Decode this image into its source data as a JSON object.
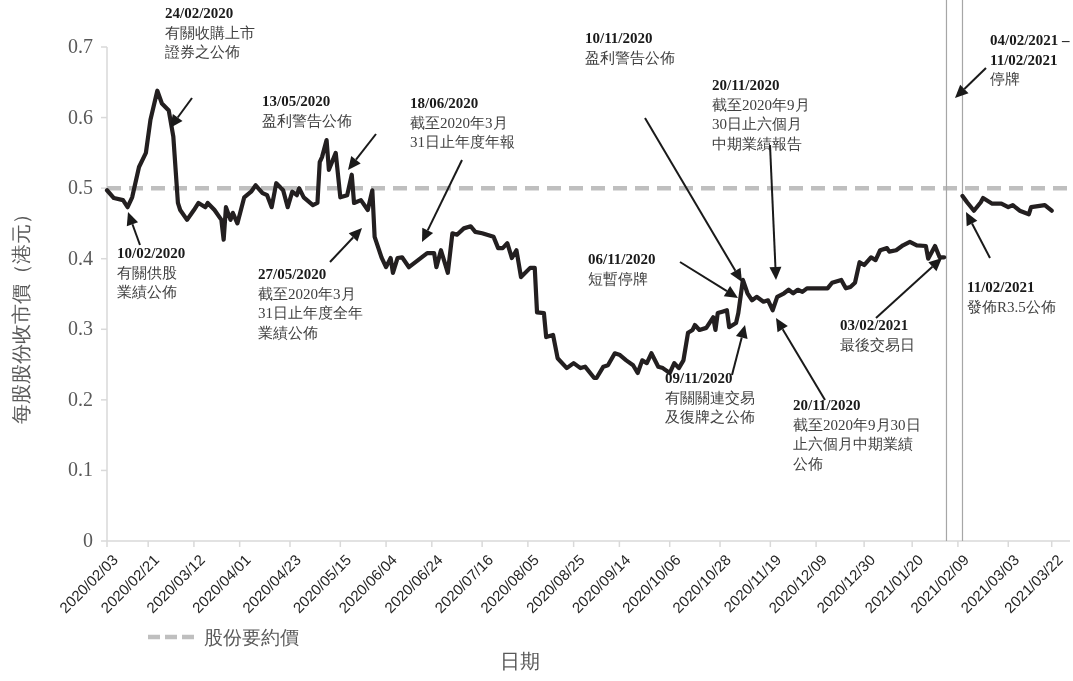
{
  "chart_data": {
    "type": "line",
    "xlabel": "日期",
    "ylabel": "每股股份收市價（港元）",
    "x": [
      "2020-02-03",
      "2020-02-06",
      "2020-02-10",
      "2020-02-12",
      "2020-02-14",
      "2020-02-17",
      "2020-02-20",
      "2020-02-22",
      "2020-02-25",
      "2020-02-27",
      "2020-03-01",
      "2020-03-03",
      "2020-03-05",
      "2020-03-06",
      "2020-03-09",
      "2020-03-12",
      "2020-03-14",
      "2020-03-17",
      "2020-03-18",
      "2020-03-21",
      "2020-03-24",
      "2020-03-25",
      "2020-03-26",
      "2020-03-28",
      "2020-03-29",
      "2020-03-31",
      "2020-04-03",
      "2020-04-06",
      "2020-04-08",
      "2020-04-11",
      "2020-04-13",
      "2020-04-15",
      "2020-04-17",
      "2020-04-20",
      "2020-04-22",
      "2020-04-24",
      "2020-04-26",
      "2020-04-27",
      "2020-04-29",
      "2020-05-03",
      "2020-05-05",
      "2020-05-06",
      "2020-05-07",
      "2020-05-09",
      "2020-05-10",
      "2020-05-13",
      "2020-05-15",
      "2020-05-18",
      "2020-05-20",
      "2020-05-21",
      "2020-05-24",
      "2020-05-27",
      "2020-05-29",
      "2020-05-30",
      "2020-06-02",
      "2020-06-04",
      "2020-06-06",
      "2020-06-07",
      "2020-06-09",
      "2020-06-11",
      "2020-06-14",
      "2020-06-18",
      "2020-06-22",
      "2020-06-25",
      "2020-06-26",
      "2020-06-28",
      "2020-07-01",
      "2020-07-03",
      "2020-07-05",
      "2020-07-08",
      "2020-07-11",
      "2020-07-13",
      "2020-07-16",
      "2020-07-21",
      "2020-07-23",
      "2020-07-25",
      "2020-07-27",
      "2020-07-29",
      "2020-07-31",
      "2020-08-02",
      "2020-08-06",
      "2020-08-08",
      "2020-08-09",
      "2020-08-12",
      "2020-08-13",
      "2020-08-16",
      "2020-08-18",
      "2020-08-22",
      "2020-08-25",
      "2020-08-28",
      "2020-08-30",
      "2020-09-03",
      "2020-09-04",
      "2020-09-07",
      "2020-09-09",
      "2020-09-12",
      "2020-09-14",
      "2020-09-17",
      "2020-09-20",
      "2020-09-22",
      "2020-09-24",
      "2020-09-26",
      "2020-09-28",
      "2020-10-01",
      "2020-10-03",
      "2020-10-06",
      "2020-10-08",
      "2020-10-10",
      "2020-10-12",
      "2020-10-14",
      "2020-10-16",
      "2020-10-17",
      "2020-10-19",
      "2020-10-22",
      "2020-10-25",
      "2020-10-26",
      "2020-10-27",
      "2020-10-29",
      "2020-10-31",
      "2020-11-01",
      "2020-11-04",
      "2020-11-05",
      "2020-11-07",
      "2020-11-09",
      "2020-11-11",
      "2020-11-13",
      "2020-11-16",
      "2020-11-18",
      "2020-11-20",
      "2020-11-22",
      "2020-11-25",
      "2020-11-27",
      "2020-11-29",
      "2020-12-01",
      "2020-12-03",
      "2020-12-05",
      "2020-12-14",
      "2020-12-16",
      "2020-12-20",
      "2020-12-22",
      "2020-12-24",
      "2020-12-26",
      "2020-12-28",
      "2020-12-30",
      "2021-01-02",
      "2021-01-04",
      "2021-01-06",
      "2021-01-09",
      "2021-01-10",
      "2021-01-13",
      "2021-01-16",
      "2021-01-19",
      "2021-01-22",
      "2021-01-26",
      "2021-01-27",
      "2021-01-30",
      "2021-02-01",
      "2021-02-03"
    ],
    "series": [
      {
        "color": "#231f20",
        "values": [
          0.497,
          0.486,
          0.483,
          0.473,
          0.487,
          0.53,
          0.55,
          0.597,
          0.638,
          0.62,
          0.61,
          0.573,
          0.479,
          0.469,
          0.455,
          0.469,
          0.479,
          0.473,
          0.479,
          0.469,
          0.455,
          0.427,
          0.473,
          0.455,
          0.465,
          0.45,
          0.487,
          0.495,
          0.504,
          0.493,
          0.49,
          0.473,
          0.507,
          0.497,
          0.473,
          0.495,
          0.49,
          0.5,
          0.487,
          0.476,
          0.479,
          0.537,
          0.544,
          0.568,
          0.526,
          0.55,
          0.487,
          0.49,
          0.519,
          0.479,
          0.483,
          0.469,
          0.497,
          0.431,
          0.402,
          0.388,
          0.401,
          0.38,
          0.401,
          0.402,
          0.388,
          0.398,
          0.408,
          0.408,
          0.388,
          0.412,
          0.38,
          0.436,
          0.434,
          0.443,
          0.446,
          0.438,
          0.436,
          0.431,
          0.415,
          0.415,
          0.422,
          0.401,
          0.412,
          0.374,
          0.387,
          0.387,
          0.324,
          0.323,
          0.289,
          0.292,
          0.259,
          0.245,
          0.252,
          0.245,
          0.247,
          0.231,
          0.231,
          0.247,
          0.249,
          0.266,
          0.264,
          0.256,
          0.249,
          0.238,
          0.256,
          0.252,
          0.266,
          0.247,
          0.245,
          0.238,
          0.252,
          0.245,
          0.256,
          0.295,
          0.299,
          0.306,
          0.299,
          0.302,
          0.317,
          0.299,
          0.323,
          0.325,
          0.327,
          0.303,
          0.309,
          0.323,
          0.37,
          0.351,
          0.341,
          0.346,
          0.339,
          0.341,
          0.327,
          0.346,
          0.351,
          0.356,
          0.351,
          0.356,
          0.353,
          0.358,
          0.358,
          0.366,
          0.37,
          0.358,
          0.36,
          0.366,
          0.395,
          0.391,
          0.402,
          0.398,
          0.412,
          0.415,
          0.41,
          0.412,
          0.419,
          0.424,
          0.419,
          0.418,
          0.4,
          0.418,
          0.402,
          0.402
        ]
      },
      {
        "color": "#231f20",
        "x": [
          "2021-02-11",
          "2021-02-13",
          "2021-02-16",
          "2021-02-19",
          "2021-02-20",
          "2021-02-24",
          "2021-02-28",
          "2021-03-03",
          "2021-03-05",
          "2021-03-08",
          "2021-03-12",
          "2021-03-13",
          "2021-03-19",
          "2021-03-22"
        ],
        "values": [
          0.489,
          0.48,
          0.468,
          0.48,
          0.486,
          0.478,
          0.478,
          0.473,
          0.476,
          0.468,
          0.463,
          0.473,
          0.476,
          0.468
        ]
      }
    ],
    "xlim": [
      "2020-02-03",
      "2021-03-30"
    ],
    "ylim": [
      0,
      0.7
    ],
    "xticks": [
      {
        "value": "2020-02-03",
        "label": "2020/02/03"
      },
      {
        "value": "2020-02-21",
        "label": "2020/02/21"
      },
      {
        "value": "2020-03-12",
        "label": "2020/03/12"
      },
      {
        "value": "2020-04-01",
        "label": "2020/04/01"
      },
      {
        "value": "2020-04-23",
        "label": "2020/04/23"
      },
      {
        "value": "2020-05-15",
        "label": "2020/05/15"
      },
      {
        "value": "2020-06-04",
        "label": "2020/06/04"
      },
      {
        "value": "2020-06-24",
        "label": "2020/06/24"
      },
      {
        "value": "2020-07-16",
        "label": "2020/07/16"
      },
      {
        "value": "2020-08-05",
        "label": "2020/08/05"
      },
      {
        "value": "2020-08-25",
        "label": "2020/08/25"
      },
      {
        "value": "2020-09-14",
        "label": "2020/09/14"
      },
      {
        "value": "2020-10-06",
        "label": "2020/10/06"
      },
      {
        "value": "2020-10-28",
        "label": "2020/10/28"
      },
      {
        "value": "2020-11-19",
        "label": "2020/11/19"
      },
      {
        "value": "2020-12-09",
        "label": "2020/12/09"
      },
      {
        "value": "2020-12-30",
        "label": "2020/12/30"
      },
      {
        "value": "2021-01-20",
        "label": "2021/01/20"
      },
      {
        "value": "2021-02-09",
        "label": "2021/02/09"
      },
      {
        "value": "2021-03-03",
        "label": "2021/03/03"
      },
      {
        "value": "2021-03-22",
        "label": "2021/03/22"
      }
    ],
    "yticks": [
      0,
      0.1,
      0.2,
      0.3,
      0.4,
      0.5,
      0.6,
      0.7
    ],
    "ref_lines": [
      {
        "axis": "y",
        "value": 0.5,
        "label": "股份要約價",
        "color": "#bfbfbf",
        "line_style": "dashed"
      },
      {
        "axis": "x",
        "value": "2021-02-04",
        "color": "#a6a6a6"
      },
      {
        "axis": "x",
        "value": "2021-02-11",
        "color": "#a6a6a6"
      }
    ],
    "legend": "bottom left",
    "annotations": [
      "24/02/2020\n有關收購上市證券之公佈",
      "10/02/2020\n有關供股業績公佈",
      "13/05/2020\n盈利警告公佈",
      "27/05/2020\n截至2020年3月31日止年度全年業績公佈",
      "18/06/2020\n截至2020年3月31日止年度年報",
      "06/11/2020\n短暫停牌",
      "10/11/2020\n盈利警告公佈",
      "09/11/2020\n有關關連交易及復牌之公佈",
      "20/11/2020\n截至2020年9月30日止六個月中期業績報告",
      "20/11/2020\n截至2020年9月30日止六個月中期業績公佈",
      "03/02/2021\n最後交易日",
      "04/02/2021 –\n11/02/2021\n停牌",
      "11/02/2021\n發佈R3.5公佈"
    ]
  }
}
